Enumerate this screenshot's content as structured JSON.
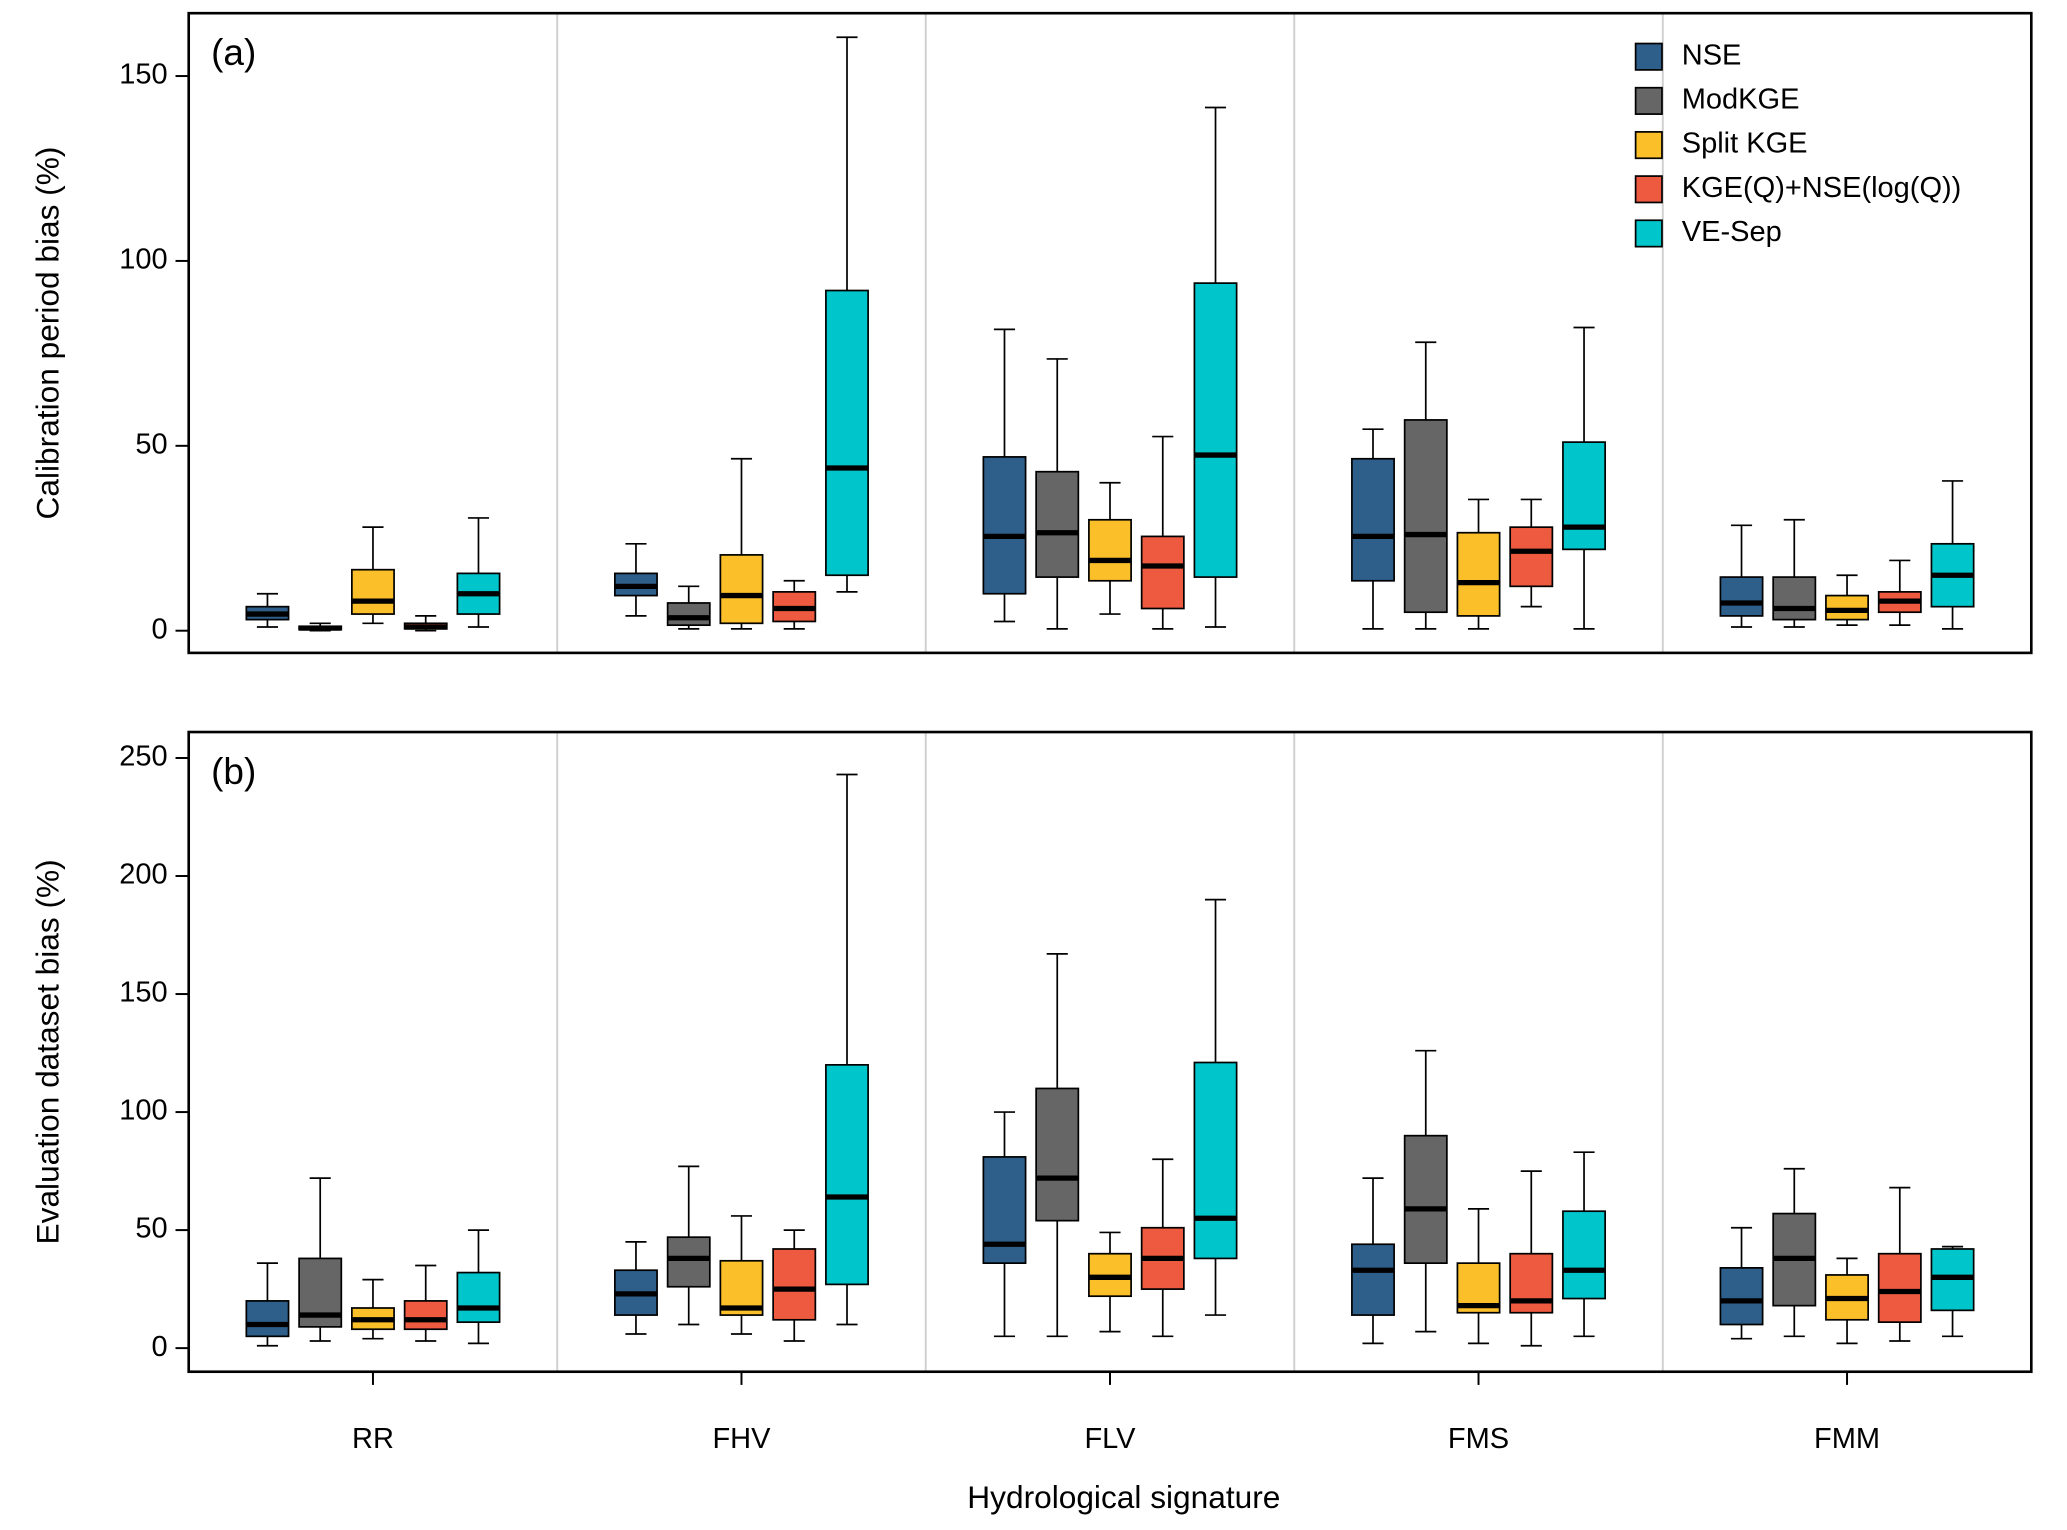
{
  "chart_data": {
    "type": "box",
    "xlabel": "Hydrological signature",
    "categories": [
      "RR",
      "FHV",
      "FLV",
      "FMS",
      "FMM"
    ],
    "series": [
      {
        "name": "NSE",
        "color": "#2e5f8a"
      },
      {
        "name": "ModKGE",
        "color": "#666666"
      },
      {
        "name": "Split KGE",
        "color": "#fbbf2a"
      },
      {
        "name": "KGE(Q)+NSE(log(Q))",
        "color": "#ee5a3f"
      },
      {
        "name": "VE-Sep",
        "color": "#00c5cb"
      }
    ],
    "legend": "top-right",
    "panels": [
      {
        "label": "(a)",
        "ylabel": "Calibration period bias (%)",
        "ylim": [
          -6,
          167
        ],
        "yticks": [
          0,
          50,
          100,
          150
        ],
        "series": [
          {
            "values": [
              [
                1,
                3,
                4.5,
                6.5,
                10
              ],
              [
                4,
                9.5,
                12,
                15.5,
                23.5
              ],
              [
                2.5,
                10,
                25.5,
                47,
                81.5
              ],
              [
                0.5,
                13.5,
                25.5,
                46.5,
                54.5
              ],
              [
                1,
                4,
                7.5,
                14.5,
                28.5
              ]
            ]
          },
          {
            "values": [
              [
                0,
                0.3,
                0.7,
                1.2,
                2
              ],
              [
                0.5,
                1.5,
                3.5,
                7.5,
                12
              ],
              [
                0.5,
                14.5,
                26.5,
                43,
                73.5
              ],
              [
                0.5,
                5,
                26,
                57,
                78
              ],
              [
                1,
                3,
                6,
                14.5,
                30
              ]
            ]
          },
          {
            "values": [
              [
                2,
                4.5,
                8,
                16.5,
                28
              ],
              [
                0.5,
                2,
                9.5,
                20.5,
                46.5
              ],
              [
                4.5,
                13.5,
                19,
                30,
                40
              ],
              [
                0.5,
                4,
                13,
                26.5,
                35.5
              ],
              [
                1.5,
                3,
                5.5,
                9.5,
                15
              ]
            ]
          },
          {
            "values": [
              [
                0,
                0.5,
                1,
                2,
                4
              ],
              [
                0.5,
                2.5,
                6,
                10.5,
                13.5
              ],
              [
                0.5,
                6,
                17.5,
                25.5,
                52.5
              ],
              [
                6.5,
                12,
                21.5,
                28,
                35.5
              ],
              [
                1.5,
                5,
                8,
                10.5,
                19
              ]
            ]
          },
          {
            "values": [
              [
                1,
                4.5,
                10,
                15.5,
                30.5
              ],
              [
                10.5,
                15,
                44,
                92,
                160.5
              ],
              [
                1,
                14.5,
                47.5,
                94,
                141.5
              ],
              [
                0.5,
                22,
                28,
                51,
                82
              ],
              [
                0.5,
                6.5,
                15,
                23.5,
                40.5
              ]
            ]
          }
        ]
      },
      {
        "label": "(b)",
        "ylabel": "Evaluation dataset bias (%)",
        "ylim": [
          -10,
          261
        ],
        "yticks": [
          0,
          50,
          100,
          150,
          200,
          250
        ],
        "series": [
          {
            "values": [
              [
                1,
                5,
                10,
                20,
                36
              ],
              [
                6,
                14,
                23,
                33,
                45
              ],
              [
                5,
                36,
                44,
                81,
                100
              ],
              [
                2,
                14,
                33,
                44,
                72
              ],
              [
                4,
                10,
                20,
                34,
                51
              ]
            ]
          },
          {
            "values": [
              [
                3,
                9,
                14,
                38,
                72
              ],
              [
                10,
                26,
                38,
                47,
                77
              ],
              [
                5,
                54,
                72,
                110,
                167
              ],
              [
                7,
                36,
                59,
                90,
                126
              ],
              [
                5,
                18,
                38,
                57,
                76
              ]
            ]
          },
          {
            "values": [
              [
                4,
                8,
                12,
                17,
                29
              ],
              [
                6,
                14,
                17,
                37,
                56
              ],
              [
                7,
                22,
                30,
                40,
                49
              ],
              [
                2,
                15,
                18,
                36,
                59
              ],
              [
                2,
                12,
                21,
                31,
                38
              ]
            ]
          },
          {
            "values": [
              [
                3,
                8,
                12,
                20,
                35
              ],
              [
                3,
                12,
                25,
                42,
                50
              ],
              [
                5,
                25,
                38,
                51,
                80
              ],
              [
                1,
                15,
                20,
                40,
                75
              ],
              [
                3,
                11,
                24,
                40,
                68
              ]
            ]
          },
          {
            "values": [
              [
                2,
                11,
                17,
                32,
                50
              ],
              [
                10,
                27,
                64,
                120,
                243
              ],
              [
                14,
                38,
                55,
                121,
                190
              ],
              [
                5,
                21,
                33,
                58,
                83
              ],
              [
                5,
                16,
                30,
                42,
                43
              ]
            ]
          }
        ]
      }
    ]
  }
}
